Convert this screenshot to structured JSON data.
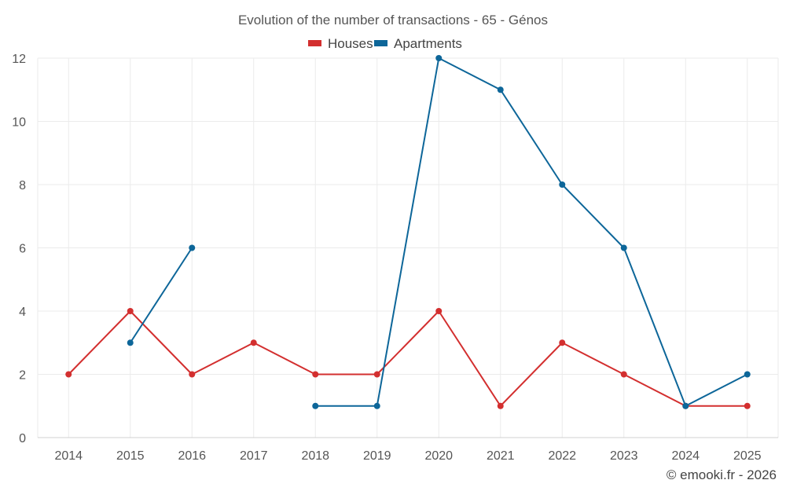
{
  "chart_data": {
    "type": "line",
    "title": "Evolution of the number of transactions - 65 - Génos",
    "xlabel": "",
    "ylabel": "",
    "categories": [
      "2014",
      "2015",
      "2016",
      "2017",
      "2018",
      "2019",
      "2020",
      "2021",
      "2022",
      "2023",
      "2024",
      "2025"
    ],
    "ylim": [
      0,
      12
    ],
    "yticks": [
      0,
      2,
      4,
      6,
      8,
      10,
      12
    ],
    "grid": true,
    "legend_position": "top-center",
    "series": [
      {
        "name": "Houses",
        "color": "#d32f2f",
        "values": [
          2,
          4,
          2,
          3,
          2,
          2,
          4,
          1,
          3,
          2,
          1,
          1
        ]
      },
      {
        "name": "Apartments",
        "color": "#0d6699",
        "values": [
          null,
          3,
          6,
          null,
          1,
          1,
          12,
          11,
          8,
          6,
          1,
          2
        ]
      }
    ]
  },
  "footer": {
    "credit": "© emooki.fr - 2026"
  }
}
